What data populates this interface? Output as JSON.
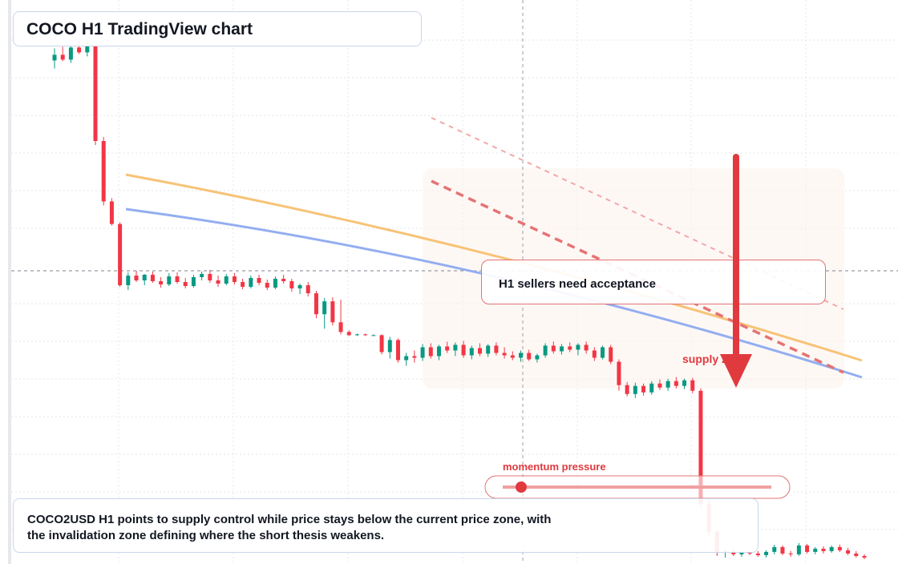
{
  "header": {
    "title": "COCO H1 TradingView chart"
  },
  "annotations": {
    "note": "H1 sellers need acceptance",
    "supply": "supply zone",
    "momentum": "momentum pressure",
    "summary": "COCO2USD H1 points to supply control while price stays below the current price zone, with the invalidation zone defining where the short thesis weakens."
  },
  "chart_data": {
    "type": "candlestick",
    "ylim": [
      30,
      100
    ],
    "up_color": "#089981",
    "down_color": "#f23645",
    "candles": [
      [
        92.5,
        94,
        91.5,
        93.2
      ],
      [
        93.2,
        94.2,
        92.4,
        92.6
      ],
      [
        92.6,
        94.5,
        92.2,
        94.1
      ],
      [
        94.1,
        95,
        93.3,
        93.5
      ],
      [
        93.5,
        94.8,
        93,
        94.3
      ],
      [
        94.3,
        94.5,
        82,
        82.5
      ],
      [
        82.5,
        83,
        74.5,
        75
      ],
      [
        75,
        75.4,
        72,
        72.2
      ],
      [
        72.2,
        72.4,
        64.4,
        64.6
      ],
      [
        64.6,
        66.2,
        64,
        65.8
      ],
      [
        65.8,
        66.4,
        65,
        65.2
      ],
      [
        65.2,
        66,
        64.6,
        65.9
      ],
      [
        65.9,
        66.3,
        64.9,
        65.1
      ],
      [
        65.1,
        65.6,
        64.3,
        64.7
      ],
      [
        64.7,
        66.1,
        64.5,
        65.7
      ],
      [
        65.7,
        66.2,
        64.8,
        65
      ],
      [
        65,
        65.5,
        64.2,
        64.5
      ],
      [
        64.5,
        65.9,
        64.3,
        65.6
      ],
      [
        65.6,
        66.3,
        65.2,
        66
      ],
      [
        66,
        66.5,
        64.9,
        65.2
      ],
      [
        65.2,
        65.8,
        64.4,
        64.8
      ],
      [
        64.8,
        66,
        64.6,
        65.7
      ],
      [
        65.7,
        66.1,
        64.7,
        65
      ],
      [
        65,
        65.4,
        64.1,
        64.4
      ],
      [
        64.4,
        65.8,
        64.2,
        65.5
      ],
      [
        65.5,
        65.9,
        64.6,
        64.9
      ],
      [
        64.9,
        65.3,
        64,
        64.3
      ],
      [
        64.3,
        65.7,
        64.1,
        65.4
      ],
      [
        65.4,
        65.9,
        64.8,
        65.1
      ],
      [
        65.1,
        65.4,
        63.8,
        64.2
      ],
      [
        64.2,
        64.8,
        63.5,
        64.6
      ],
      [
        64.6,
        65,
        63.2,
        63.6
      ],
      [
        63.6,
        63.9,
        60.5,
        61
      ],
      [
        61,
        63,
        59.2,
        62.6
      ],
      [
        62.6,
        63.1,
        59.6,
        60
      ],
      [
        60,
        62.8,
        58.5,
        58.8
      ],
      [
        58.8,
        59,
        58.3,
        58.4
      ],
      [
        58.4,
        58.6,
        58.3,
        58.5
      ],
      [
        58.5,
        58.6,
        58.3,
        58.4
      ],
      [
        58.4,
        58.5,
        58.3,
        58.4
      ],
      [
        58.4,
        58.5,
        56,
        56.3
      ],
      [
        56.3,
        58.2,
        55.5,
        57.8
      ],
      [
        57.8,
        58,
        55,
        55.3
      ],
      [
        55.3,
        56.2,
        54.6,
        55.8
      ],
      [
        55.8,
        56.5,
        55,
        55.6
      ],
      [
        55.6,
        57.3,
        55.2,
        56.9
      ],
      [
        56.9,
        57.4,
        55.5,
        55.8
      ],
      [
        55.8,
        57.2,
        55.3,
        57
      ],
      [
        57,
        57.6,
        56.2,
        56.5
      ],
      [
        56.5,
        57.5,
        55.8,
        57.2
      ],
      [
        57.2,
        57.7,
        55.6,
        55.9
      ],
      [
        55.9,
        57.1,
        55.4,
        56.8
      ],
      [
        56.8,
        57.4,
        55.8,
        56.1
      ],
      [
        56.1,
        57.3,
        55.7,
        57.1
      ],
      [
        57.1,
        57.5,
        55.9,
        56.2
      ],
      [
        56.2,
        56.9,
        55.5,
        55.9
      ],
      [
        55.9,
        56.4,
        55.3,
        55.6
      ],
      [
        55.6,
        56.5,
        55.1,
        56.2
      ],
      [
        56.2,
        56.6,
        55.2,
        55.4
      ],
      [
        55.4,
        56.1,
        55,
        55.9
      ],
      [
        55.9,
        57.4,
        55.6,
        57.1
      ],
      [
        57.1,
        57.6,
        56.1,
        56.4
      ],
      [
        56.4,
        57.3,
        56,
        57
      ],
      [
        57,
        57.5,
        56.3,
        56.6
      ],
      [
        56.6,
        57.4,
        55.9,
        57.2
      ],
      [
        57.2,
        57.6,
        56.1,
        56.5
      ],
      [
        56.5,
        56.9,
        55.2,
        55.6
      ],
      [
        55.6,
        57.1,
        55.4,
        56.9
      ],
      [
        56.9,
        57.2,
        54.8,
        55.1
      ],
      [
        55.1,
        55.4,
        51.5,
        52.2
      ],
      [
        52.2,
        52.6,
        50.8,
        51.1
      ],
      [
        51.1,
        52.5,
        50.6,
        52.1
      ],
      [
        52.1,
        52.4,
        50.9,
        51.3
      ],
      [
        51.3,
        52.7,
        51,
        52.4
      ],
      [
        52.4,
        52.9,
        51.6,
        51.9
      ],
      [
        51.9,
        53,
        51.5,
        52.7
      ],
      [
        52.7,
        53.2,
        51.8,
        52.1
      ],
      [
        52.1,
        53,
        51.7,
        52.8
      ],
      [
        52.8,
        53.1,
        51.2,
        51.5
      ],
      [
        51.5,
        51.8,
        37,
        37.5
      ],
      [
        37.5,
        38,
        33.5,
        34
      ],
      [
        34,
        34.2,
        31,
        31.4
      ],
      [
        31.4,
        31.8,
        30.8,
        31.6
      ],
      [
        31.6,
        31.9,
        31,
        31.2
      ],
      [
        31.2,
        31.7,
        30.9,
        31.5
      ],
      [
        31.5,
        31.8,
        31.1,
        31.3
      ],
      [
        31.3,
        31.6,
        30.9,
        31.1
      ],
      [
        31.1,
        31.7,
        30.8,
        31.5
      ],
      [
        31.5,
        32.4,
        31.2,
        32.1
      ],
      [
        32.1,
        32.3,
        31.1,
        31.3
      ],
      [
        31.3,
        31.6,
        30.9,
        31.2
      ],
      [
        31.2,
        32.6,
        31,
        32.3
      ],
      [
        32.3,
        32.5,
        31.3,
        31.5
      ],
      [
        31.5,
        32.1,
        31.2,
        31.9
      ],
      [
        31.9,
        32.2,
        31.3,
        31.6
      ],
      [
        31.6,
        32.3,
        31.4,
        32.1
      ],
      [
        32.1,
        32.4,
        31.5,
        31.7
      ],
      [
        31.7,
        32,
        31.1,
        31.3
      ],
      [
        31.3,
        31.6,
        30.8,
        31
      ],
      [
        31,
        31.2,
        30.6,
        30.8
      ]
    ]
  }
}
